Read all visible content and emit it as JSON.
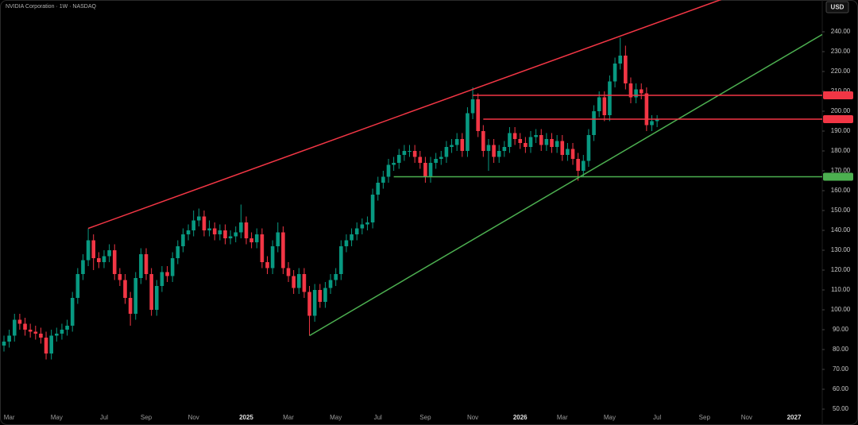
{
  "chart_data": {
    "type": "candlestick",
    "title": "NVIDIA Corporation · 1W · NASDAQ",
    "currency": "USD",
    "up_color": "#089981",
    "down_color": "#f23645",
    "ylim": [
      44,
      256
    ],
    "yticks": [
      {
        "value": 50,
        "label": "50.00"
      },
      {
        "value": 60,
        "label": "60.00"
      },
      {
        "value": 70,
        "label": "70.00"
      },
      {
        "value": 80,
        "label": "80.00"
      },
      {
        "value": 90,
        "label": "90.00"
      },
      {
        "value": 100,
        "label": "100.00"
      },
      {
        "value": 110,
        "label": "110.00"
      },
      {
        "value": 120,
        "label": "120.00"
      },
      {
        "value": 130,
        "label": "130.00"
      },
      {
        "value": 140,
        "label": "140.00"
      },
      {
        "value": 150,
        "label": "150.00"
      },
      {
        "value": 160,
        "label": "160.00"
      },
      {
        "value": 170,
        "label": "170.00"
      },
      {
        "value": 180,
        "label": "180.00"
      },
      {
        "value": 190,
        "label": "190.00"
      },
      {
        "value": 200,
        "label": "200.00"
      },
      {
        "value": 210,
        "label": "210.00"
      },
      {
        "value": 220,
        "label": "220.00"
      },
      {
        "value": 230,
        "label": "230.00"
      },
      {
        "value": 240,
        "label": "240.00"
      }
    ],
    "categories": [
      null,
      "Mar",
      null,
      null,
      null,
      null,
      null,
      null,
      null,
      null,
      "May",
      null,
      null,
      null,
      null,
      null,
      null,
      null,
      null,
      "Jul",
      null,
      null,
      null,
      null,
      null,
      null,
      null,
      "Sep",
      null,
      null,
      null,
      null,
      null,
      null,
      null,
      null,
      "Nov",
      null,
      null,
      null,
      null,
      null,
      null,
      null,
      null,
      null,
      "2025",
      null,
      null,
      null,
      null,
      null,
      null,
      null,
      "Mar",
      null,
      null,
      null,
      null,
      null,
      null,
      null,
      null,
      "May",
      null,
      null,
      null,
      null,
      null,
      null,
      null,
      "Jul",
      null,
      null,
      null,
      null,
      null,
      null,
      null,
      null,
      "Sep",
      null,
      null,
      null,
      null,
      null,
      null,
      null,
      null,
      "Nov",
      null,
      null,
      null,
      null,
      null,
      null,
      null,
      null,
      "2026",
      null,
      null,
      null,
      null,
      null,
      null,
      null,
      "Mar",
      null,
      null,
      null,
      null,
      null,
      null,
      null,
      null,
      "May",
      null,
      null,
      null,
      null,
      null,
      null,
      null,
      null,
      "Jul",
      null,
      null,
      null,
      null,
      null,
      null,
      null,
      null,
      "Sep",
      null,
      null,
      null,
      null,
      null,
      null,
      null,
      "Nov",
      null,
      null,
      null,
      null,
      null,
      null,
      null,
      null,
      "2027",
      null,
      null,
      null,
      null,
      null
    ],
    "open": [
      82,
      84,
      87,
      95,
      93,
      90,
      89,
      88,
      86,
      78,
      87,
      88,
      90,
      92,
      106,
      118,
      125,
      135,
      126,
      124,
      127,
      130,
      118,
      115,
      106,
      98,
      116,
      128,
      118,
      100,
      112,
      119,
      117,
      126,
      132,
      138,
      140,
      145,
      147,
      140,
      141,
      138,
      140,
      136,
      137,
      139,
      144,
      136,
      134,
      138,
      124,
      121,
      132,
      139,
      121,
      117,
      111,
      118,
      109,
      97,
      110,
      104,
      111,
      115,
      118,
      132,
      135,
      138,
      141,
      143,
      144,
      158,
      164,
      167,
      173,
      174,
      178,
      180,
      180,
      177,
      174,
      167,
      174,
      176,
      177,
      182,
      183,
      186,
      180,
      199,
      206,
      190,
      180,
      183,
      177,
      180,
      182,
      189,
      186,
      184,
      182,
      187,
      188,
      183,
      186,
      182,
      185,
      178,
      181,
      176,
      170,
      175,
      188,
      200,
      207,
      198,
      215,
      224,
      228,
      214,
      207,
      211,
      209,
      193,
      195,
      null,
      null,
      null,
      null,
      null,
      null,
      null,
      null,
      null,
      null,
      null,
      null,
      null,
      null,
      null,
      null,
      null,
      null,
      null,
      null,
      null,
      null,
      null,
      null,
      null,
      null,
      null,
      null,
      null,
      null,
      null
    ],
    "high": [
      87,
      90,
      98,
      98,
      96,
      93,
      92,
      91,
      89,
      90,
      91,
      93,
      95,
      109,
      121,
      128,
      141,
      138,
      129,
      130,
      133,
      133,
      121,
      118,
      109,
      119,
      131,
      131,
      121,
      115,
      122,
      122,
      129,
      135,
      141,
      143,
      150,
      151,
      150,
      145,
      144,
      143,
      143,
      140,
      142,
      153,
      147,
      139,
      141,
      141,
      127,
      135,
      144,
      142,
      124,
      120,
      121,
      121,
      112,
      113,
      113,
      114,
      118,
      121,
      135,
      138,
      141,
      144,
      146,
      147,
      161,
      167,
      170,
      176,
      177,
      181,
      183,
      183,
      183,
      180,
      177,
      177,
      179,
      180,
      185,
      186,
      189,
      189,
      202,
      212,
      209,
      193,
      186,
      186,
      183,
      185,
      192,
      192,
      189,
      187,
      190,
      191,
      191,
      189,
      189,
      188,
      188,
      184,
      184,
      179,
      178,
      191,
      203,
      210,
      210,
      218,
      227,
      237,
      233,
      217,
      214,
      214,
      212,
      198,
      198,
      null,
      null,
      null,
      null,
      null,
      null,
      null,
      null,
      null,
      null,
      null,
      null,
      null,
      null,
      null,
      null,
      null,
      null,
      null,
      null,
      null,
      null,
      null,
      null,
      null,
      null,
      null,
      null,
      null,
      null,
      null
    ],
    "low": [
      79,
      81,
      84,
      90,
      87,
      86,
      85,
      83,
      75,
      75,
      84,
      85,
      87,
      89,
      103,
      115,
      122,
      120,
      121,
      121,
      124,
      115,
      112,
      103,
      92,
      95,
      113,
      115,
      97,
      97,
      109,
      114,
      114,
      123,
      129,
      135,
      137,
      142,
      137,
      137,
      135,
      135,
      133,
      133,
      134,
      136,
      133,
      131,
      131,
      121,
      118,
      118,
      129,
      118,
      114,
      108,
      108,
      106,
      87,
      94,
      101,
      101,
      108,
      112,
      115,
      129,
      132,
      135,
      138,
      140,
      141,
      155,
      161,
      164,
      170,
      171,
      175,
      177,
      174,
      171,
      164,
      164,
      171,
      173,
      174,
      179,
      180,
      177,
      177,
      196,
      187,
      177,
      170,
      174,
      174,
      177,
      179,
      183,
      181,
      179,
      179,
      184,
      180,
      180,
      179,
      179,
      175,
      175,
      173,
      165,
      167,
      172,
      185,
      197,
      195,
      195,
      212,
      221,
      211,
      204,
      204,
      206,
      190,
      190,
      192,
      null,
      null,
      null,
      null,
      null,
      null,
      null,
      null,
      null,
      null,
      null,
      null,
      null,
      null,
      null,
      null,
      null,
      null,
      null,
      null,
      null,
      null,
      null,
      null,
      null,
      null,
      null,
      null,
      null,
      null,
      null
    ],
    "close": [
      84,
      87,
      95,
      93,
      90,
      89,
      88,
      86,
      78,
      87,
      88,
      90,
      92,
      106,
      118,
      125,
      135,
      126,
      124,
      127,
      130,
      118,
      115,
      106,
      98,
      116,
      128,
      118,
      100,
      112,
      119,
      117,
      126,
      132,
      138,
      140,
      145,
      147,
      140,
      141,
      138,
      140,
      136,
      137,
      139,
      144,
      136,
      134,
      138,
      124,
      121,
      132,
      139,
      121,
      117,
      111,
      118,
      109,
      97,
      110,
      104,
      111,
      115,
      118,
      132,
      135,
      138,
      141,
      143,
      144,
      158,
      164,
      167,
      173,
      174,
      178,
      180,
      180,
      177,
      174,
      167,
      174,
      176,
      177,
      182,
      183,
      186,
      180,
      199,
      206,
      190,
      180,
      183,
      177,
      180,
      182,
      189,
      186,
      184,
      182,
      187,
      188,
      183,
      186,
      182,
      185,
      178,
      181,
      176,
      170,
      175,
      188,
      200,
      207,
      198,
      215,
      224,
      228,
      214,
      207,
      211,
      209,
      193,
      195,
      196,
      null,
      null,
      null,
      null,
      null,
      null,
      null,
      null,
      null,
      null,
      null,
      null,
      null,
      null,
      null,
      null,
      null,
      null,
      null,
      null,
      null,
      null,
      null,
      null,
      null,
      null,
      null,
      null,
      null,
      null,
      null
    ],
    "lines": [
      {
        "color": "#f23645",
        "points": [
          [
            16,
            141
          ],
          [
            89,
            211
          ]
        ],
        "extend": true
      },
      {
        "color": "#4caf50",
        "points": [
          [
            58,
            87
          ],
          [
            110,
            168
          ]
        ],
        "extend": true
      },
      {
        "color": "#f23645",
        "points": [
          [
            89,
            208
          ],
          [
            155,
            208
          ]
        ],
        "extend": true
      },
      {
        "color": "#f23645",
        "points": [
          [
            91,
            196
          ],
          [
            155,
            196
          ]
        ],
        "extend": true
      },
      {
        "color": "#4caf50",
        "points": [
          [
            74,
            167
          ],
          [
            155,
            167
          ]
        ],
        "extend": true
      }
    ]
  }
}
